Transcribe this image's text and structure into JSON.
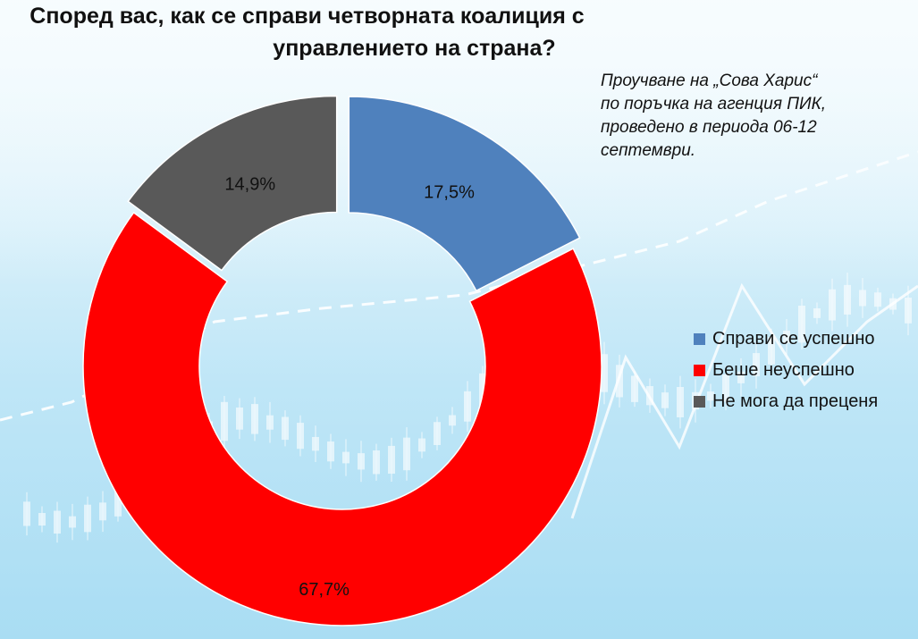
{
  "title_lines": [
    "Според вас, как се справи четворната коалиция с",
    "управлението на страна?"
  ],
  "note_lines": [
    "Проучване на „Сова Харис“",
    "по поръчка на агенция ПИК,",
    "проведено в периода 06-12",
    "септември."
  ],
  "chart_data": {
    "type": "pie",
    "variant": "doughnut",
    "categories": [
      "Справи се успешно",
      "Беше неуспешно",
      "Не мога да преценя"
    ],
    "values": [
      17.5,
      67.7,
      14.9
    ],
    "labels": [
      "17,5%",
      "67,7%",
      "14,9%"
    ],
    "colors": [
      "#4f81bd",
      "#ff0000",
      "#595959"
    ],
    "legend_placement": "right"
  }
}
